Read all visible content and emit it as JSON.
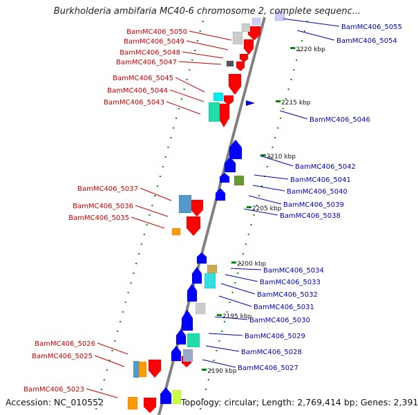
{
  "title": "Burkholderia ambifaria MC40-6 chromosome 2, complete sequenc...",
  "footer": {
    "accession": "Accession: NC_010552",
    "topology": "Topology: circular; Length: 2,769,414 bp; Genes: 2,391"
  },
  "colors": {
    "backbone": "#808080",
    "forward_strand": "#ff0000",
    "reverse_strand": "#0000ff",
    "forward_label": "#cc0000",
    "reverse_label": "#0000bb",
    "tick_dots": "#008800"
  },
  "ruler_ticks": [
    "2220 kbp",
    "2215 kbp",
    "2210 kbp",
    "2205 kbp",
    "2200 kbp",
    "2195 kbp",
    "2190 kbp"
  ],
  "forward_labels": [
    "BamMC406_5050",
    "BamMC406_5049",
    "BamMC406_5048",
    "BamMC406_5047",
    "BamMC406_5045",
    "BamMC406_5044",
    "BamMC406_5043",
    "BamMC406_5037",
    "BamMC406_5036",
    "BamMC406_5035",
    "BamMC406_5026",
    "BamMC406_5025",
    "BamMC406_5023"
  ],
  "reverse_labels": [
    "BamMC406_5055",
    "BamMC406_5054",
    "BamMC406_5046",
    "BamMC406_5042",
    "BamMC406_5041",
    "BamMC406_5040",
    "BamMC406_5039",
    "BamMC406_5038",
    "BamMC406_5034",
    "BamMC406_5033",
    "BamMC406_5032",
    "BamMC406_5031",
    "BamMC406_5030",
    "BamMC406_5029",
    "BamMC406_5028",
    "BamMC406_5027"
  ]
}
